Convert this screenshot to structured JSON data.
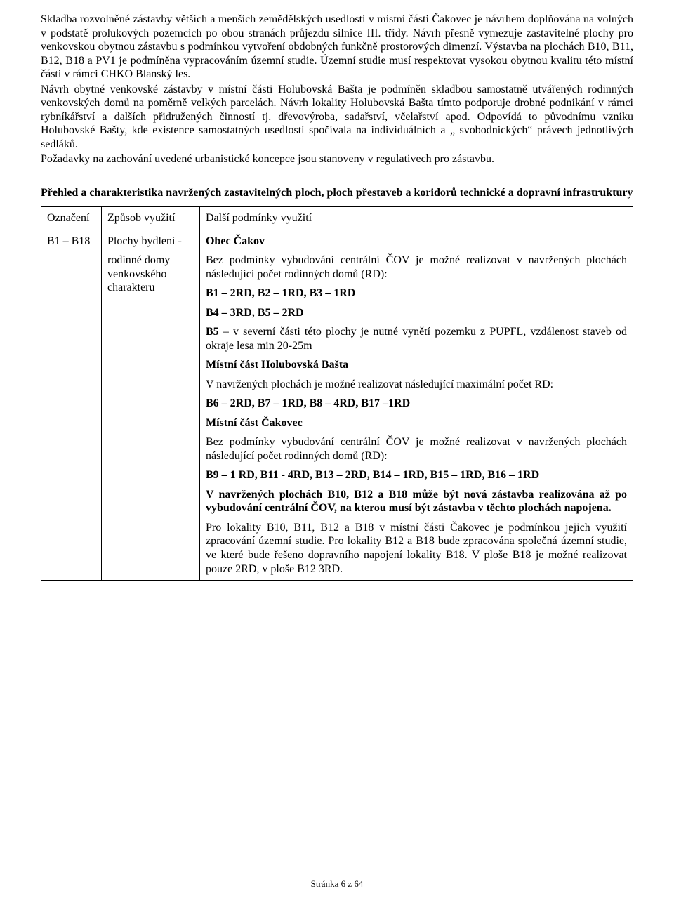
{
  "paragraphs": {
    "p1": "Skladba rozvolněné zástavby větších a menších zemědělských usedlostí v místní části Čakovec je návrhem doplňována na volných v podstatě prolukových pozemcích po obou stranách průjezdu silnice III. třídy. Návrh přesně vymezuje zastavitelné plochy pro venkovskou obytnou zástavbu s podmínkou vytvoření obdobných funkčně prostorových dimenzí. Výstavba na plochách B10, B11, B12, B18 a PV1 je podmíněna vypracováním územní studie. Územní studie musí respektovat vysokou obytnou kvalitu této místní části v rámci CHKO Blanský les.",
    "p2": " Návrh obytné venkovské zástavby v místní části Holubovská Bašta je podmíněn skladbou samostatně utvářených rodinných venkovských domů na poměrně velkých parcelách. Návrh lokality Holubovská Bašta tímto podporuje drobné podnikání v rámci rybníkářství a dalších přidružených činností tj. dřevovýroba, sadařství, včelařství apod. Odpovídá to původnímu vzniku Holubovské Bašty, kde existence samostatných usedlostí spočívala na individuálních a „ svobodnických“ právech jednotlivých sedláků.",
    "p3": "Požadavky na zachování uvedené urbanistické koncepce jsou stanoveny v regulativech pro zástavbu."
  },
  "section_heading": "Přehled a charakteristika navržených zastavitelných ploch, ploch přestaveb a koridorů technické a dopravní infrastruktury",
  "table": {
    "headers": {
      "oznaceni": "Označení",
      "zpusob": "Způsob využití",
      "podminky": "Další podmínky využití"
    },
    "row": {
      "oznaceni": "B1 – B18",
      "zpusob_line1": "Plochy bydlení -",
      "zpusob_line2": "rodinné domy venkovského charakteru",
      "c": {
        "heading1": "Obec Čakov",
        "t1": "Bez podmínky vybudování centrální ČOV je možné realizovat v navržených plochách následující počet rodinných domů (RD):",
        "b1": "B1 – 2RD, B2 – 1RD, B3 – 1RD",
        "b2": "B4 – 3RD, B5 – 2RD",
        "b5_prefix": "B5",
        "b5_rest": " – v severní části této plochy je nutné vynětí pozemku z PUPFL, vzdálenost staveb od okraje lesa min 20-25m",
        "heading2": "Místní  část Holubovská Bašta",
        "t2": "V navržených plochách je možné realizovat následující maximální počet RD:",
        "b3": "B6 – 2RD, B7 – 1RD, B8 – 4RD, B17 –1RD",
        "heading3": "Místní část Čakovec",
        "t3": "Bez podmínky vybudování centrální ČOV je možné realizovat v navržených plochách následující počet rodinných domů (RD):",
        "b4": "B9 – 1 RD, B11 - 4RD, B13 – 2RD, B14 – 1RD, B15 – 1RD, B16 – 1RD",
        "b5full": "V navržených plochách B10, B12 a B18 může být nová zástavba realizována až po vybudování centrální ČOV, na kterou musí být zástavba v těchto plochách napojena.",
        "t4": "Pro lokality B10, B11, B12 a B18 v místní části Čakovec je podmínkou jejich využití zpracování územní studie. Pro lokality B12 a B18 bude zpracována společná územní studie, ve které bude řešeno dopravního napojení lokality B18. V ploše B18 je možné realizovat pouze 2RD, v ploše B12 3RD."
      }
    }
  },
  "footer": "Stránka 6 z 64"
}
